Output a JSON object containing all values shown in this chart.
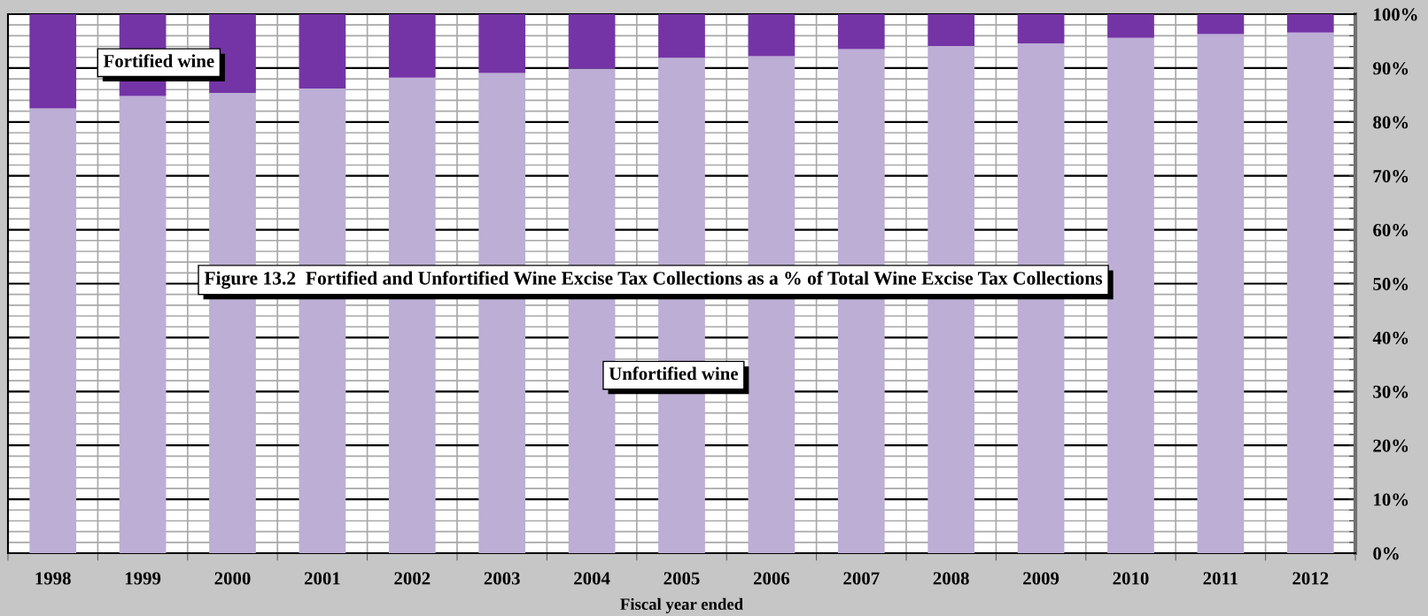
{
  "chart_data": {
    "type": "bar",
    "stacked": true,
    "title": "Figure 13.2  Fortified and Unfortified Wine Excise Tax Collections as a % of Total Wine Excise Tax Collections",
    "xlabel": "Fiscal year ended",
    "categories": [
      "1998",
      "1999",
      "2000",
      "2001",
      "2002",
      "2003",
      "2004",
      "2005",
      "2006",
      "2007",
      "2008",
      "2009",
      "2010",
      "2011",
      "2012"
    ],
    "series": [
      {
        "name": "Unfortified wine",
        "color": "#bcaed5",
        "values": [
          82.5,
          84.8,
          85.4,
          86.2,
          88.2,
          89.1,
          89.9,
          91.9,
          92.2,
          93.5,
          94.1,
          94.6,
          95.6,
          96.3,
          96.6
        ]
      },
      {
        "name": "Fortified wine",
        "color": "#7434a6",
        "values": [
          17.5,
          15.2,
          14.6,
          13.8,
          11.8,
          10.9,
          10.1,
          8.1,
          7.8,
          6.5,
          5.9,
          5.4,
          4.4,
          3.7,
          3.4
        ]
      }
    ],
    "ylim": [
      0,
      100
    ],
    "yticks": [
      {
        "value": 0,
        "label": "0%"
      },
      {
        "value": 2,
        "label": null
      },
      {
        "value": 4,
        "label": null
      },
      {
        "value": 6,
        "label": null
      },
      {
        "value": 8,
        "label": null
      },
      {
        "value": 10,
        "label": "10%"
      },
      {
        "value": 12,
        "label": null
      },
      {
        "value": 14,
        "label": null
      },
      {
        "value": 16,
        "label": null
      },
      {
        "value": 18,
        "label": null
      },
      {
        "value": 20,
        "label": "20%"
      },
      {
        "value": 22,
        "label": null
      },
      {
        "value": 24,
        "label": null
      },
      {
        "value": 26,
        "label": null
      },
      {
        "value": 28,
        "label": null
      },
      {
        "value": 30,
        "label": "30%"
      },
      {
        "value": 32,
        "label": null
      },
      {
        "value": 34,
        "label": null
      },
      {
        "value": 36,
        "label": null
      },
      {
        "value": 38,
        "label": null
      },
      {
        "value": 40,
        "label": "40%"
      },
      {
        "value": 42,
        "label": null
      },
      {
        "value": 44,
        "label": null
      },
      {
        "value": 46,
        "label": null
      },
      {
        "value": 48,
        "label": null
      },
      {
        "value": 50,
        "label": "50%"
      },
      {
        "value": 52,
        "label": null
      },
      {
        "value": 54,
        "label": null
      },
      {
        "value": 56,
        "label": null
      },
      {
        "value": 58,
        "label": null
      },
      {
        "value": 60,
        "label": "60%"
      },
      {
        "value": 62,
        "label": null
      },
      {
        "value": 64,
        "label": null
      },
      {
        "value": 66,
        "label": null
      },
      {
        "value": 68,
        "label": null
      },
      {
        "value": 70,
        "label": "70%"
      },
      {
        "value": 72,
        "label": null
      },
      {
        "value": 74,
        "label": null
      },
      {
        "value": 76,
        "label": null
      },
      {
        "value": 78,
        "label": null
      },
      {
        "value": 80,
        "label": "80%"
      },
      {
        "value": 82,
        "label": null
      },
      {
        "value": 84,
        "label": null
      },
      {
        "value": 86,
        "label": null
      },
      {
        "value": 88,
        "label": null
      },
      {
        "value": 90,
        "label": "90%"
      },
      {
        "value": 92,
        "label": null
      },
      {
        "value": 94,
        "label": null
      },
      {
        "value": 96,
        "label": null
      },
      {
        "value": 98,
        "label": null
      },
      {
        "value": 100,
        "label": "100%"
      }
    ],
    "grid": true
  }
}
